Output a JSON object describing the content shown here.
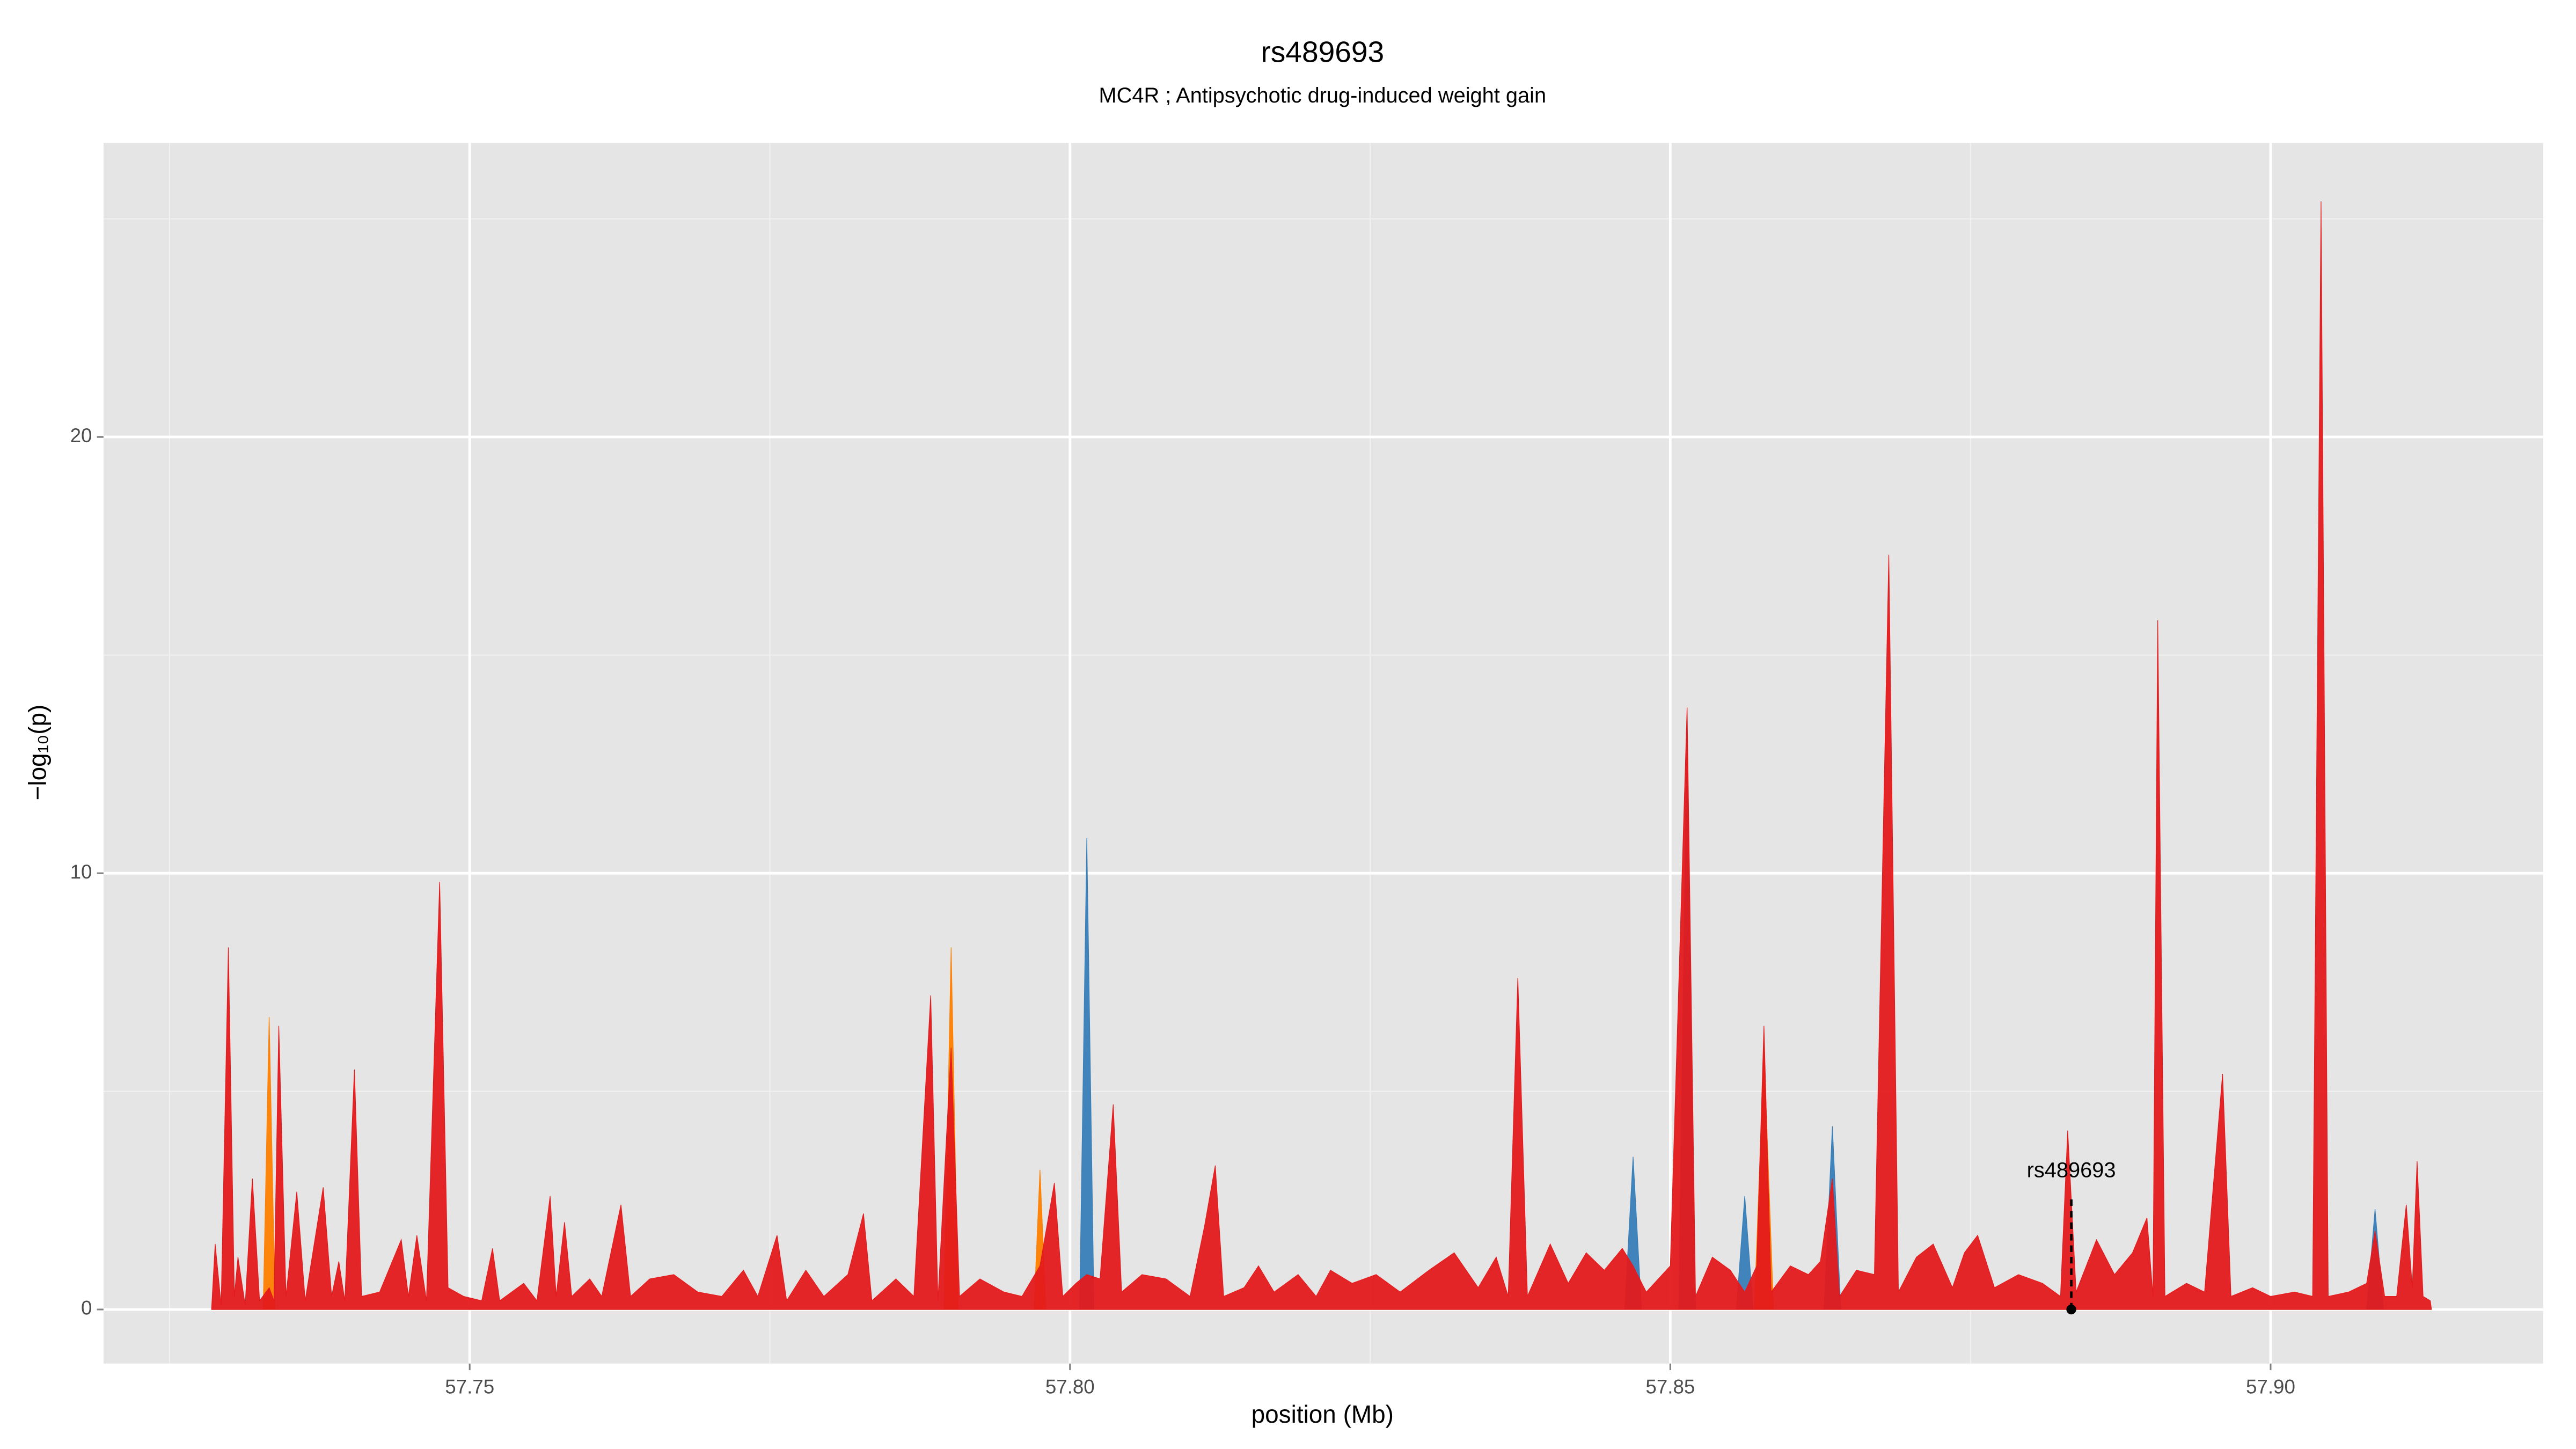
{
  "chart_data": {
    "type": "area",
    "title": "rs489693",
    "subtitle": "MC4R ; Antipsychotic drug-induced weight gain",
    "xlabel": "position (Mb)",
    "ylabel": "−log₁₀(p)",
    "xlim": [
      57.7195,
      57.9227
    ],
    "ylim": [
      -1.24,
      26.74
    ],
    "xticks": [
      57.75,
      {
        "value": 57.8,
        "label": "57.80"
      },
      57.85,
      {
        "value": 57.9,
        "label": "57.90"
      }
    ],
    "yticks": [
      0,
      10,
      20
    ],
    "xminor": [
      57.725,
      57.775,
      57.825,
      57.875
    ],
    "yminor": [
      5,
      15,
      25
    ],
    "grid": true,
    "annotation": {
      "text": "rs489693",
      "x": 57.8834,
      "y": 0
    },
    "series": [
      {
        "color": "#377eb8",
        "x": [
          57.7285,
          57.8008,
          57.8014,
          57.802,
          57.8462,
          57.8469,
          57.8476,
          57.8507,
          57.8514,
          57.8521,
          57.8555,
          57.8562,
          57.8569,
          57.8628,
          57.8635,
          57.8642,
          57.908,
          57.9087,
          57.9094,
          57.9134
        ],
        "values": [
          0,
          0,
          10.8,
          0,
          0,
          3.5,
          0,
          0,
          13.5,
          0,
          0,
          2.6,
          0,
          0,
          4.2,
          0,
          0,
          2.3,
          0,
          0
        ]
      },
      {
        "color": "#ff7f00",
        "x": [
          57.7285,
          57.7328,
          57.7333,
          57.7338,
          57.7895,
          57.7901,
          57.7907,
          57.797,
          57.7975,
          57.798,
          57.857,
          57.8578,
          57.8586,
          57.9134
        ],
        "values": [
          0,
          0,
          6.7,
          0,
          0,
          8.3,
          0,
          0,
          3.2,
          0,
          0,
          6.0,
          0,
          0
        ]
      },
      {
        "color": "#e41a1c",
        "x": [
          57.7285,
          57.7288,
          57.7293,
          57.7299,
          57.7304,
          57.7307,
          57.7313,
          57.7319,
          57.7325,
          57.7333,
          57.7337,
          57.7341,
          57.7347,
          57.7356,
          57.7363,
          57.7378,
          57.7385,
          57.7391,
          57.7396,
          57.7404,
          57.741,
          57.7425,
          57.7443,
          57.7449,
          57.7456,
          57.7464,
          57.7475,
          57.7482,
          57.7495,
          57.751,
          57.7519,
          57.7525,
          57.7545,
          57.7556,
          57.7567,
          57.7572,
          57.7579,
          57.7585,
          57.76,
          57.761,
          57.7626,
          57.7634,
          57.765,
          57.767,
          57.769,
          57.771,
          57.7728,
          57.774,
          57.7756,
          57.7764,
          57.778,
          57.7795,
          57.7815,
          57.7828,
          57.7835,
          57.7855,
          57.787,
          57.7884,
          57.789,
          57.7901,
          57.7908,
          57.7925,
          57.7945,
          57.796,
          57.7975,
          57.7987,
          57.7994,
          57.8005,
          57.8014,
          57.8025,
          57.8036,
          57.8043,
          57.806,
          57.808,
          57.81,
          57.8112,
          57.8121,
          57.8128,
          57.8145,
          57.8157,
          57.817,
          57.819,
          57.8205,
          57.8217,
          57.8235,
          57.8255,
          57.8275,
          57.8299,
          57.832,
          57.834,
          57.8355,
          57.8365,
          57.8373,
          57.8381,
          57.84,
          57.8415,
          57.843,
          57.8445,
          57.846,
          57.8469,
          57.848,
          57.85,
          57.8514,
          57.8521,
          57.8535,
          57.855,
          57.8562,
          57.8572,
          57.8578,
          57.8584,
          57.86,
          57.8615,
          57.8625,
          57.8635,
          57.8641,
          57.8655,
          57.867,
          57.8682,
          57.869,
          57.8705,
          57.8719,
          57.8735,
          57.8745,
          57.8756,
          57.877,
          57.879,
          57.881,
          57.8825,
          57.8831,
          57.8838,
          57.8855,
          57.887,
          57.8885,
          57.8897,
          57.8902,
          57.8906,
          57.8912,
          57.893,
          57.8945,
          57.896,
          57.8967,
          57.8985,
          57.9,
          57.902,
          57.9035,
          57.9042,
          57.9048,
          57.9065,
          57.908,
          57.9087,
          57.9095,
          57.9105,
          57.9113,
          57.9118,
          57.9122,
          57.9127,
          57.9133,
          57.9134
        ],
        "values": [
          0,
          1.5,
          0.1,
          8.3,
          0.3,
          1.2,
          0.1,
          3.0,
          0.2,
          0.5,
          0.2,
          6.5,
          0.3,
          2.7,
          0.2,
          2.8,
          0.3,
          1.1,
          0.2,
          5.5,
          0.3,
          0.4,
          1.6,
          0.3,
          1.7,
          0.2,
          9.8,
          0.5,
          0.3,
          0.2,
          1.4,
          0.2,
          0.6,
          0.2,
          2.6,
          0.3,
          2.0,
          0.3,
          0.7,
          0.3,
          2.4,
          0.3,
          0.7,
          0.8,
          0.4,
          0.3,
          0.9,
          0.3,
          1.7,
          0.2,
          0.9,
          0.3,
          0.8,
          2.2,
          0.2,
          0.7,
          0.3,
          7.2,
          0.2,
          6.0,
          0.3,
          0.7,
          0.4,
          0.3,
          1.0,
          2.9,
          0.3,
          0.6,
          0.8,
          0.7,
          4.7,
          0.4,
          0.8,
          0.7,
          0.3,
          1.9,
          3.3,
          0.3,
          0.5,
          1.0,
          0.4,
          0.8,
          0.3,
          0.9,
          0.6,
          0.8,
          0.4,
          0.9,
          1.3,
          0.5,
          1.2,
          0.3,
          7.6,
          0.3,
          1.5,
          0.6,
          1.3,
          0.9,
          1.4,
          1.0,
          0.4,
          1.0,
          13.8,
          0.3,
          1.2,
          0.9,
          0.4,
          1.0,
          6.5,
          0.4,
          1.0,
          0.8,
          1.1,
          3.0,
          0.3,
          0.9,
          0.8,
          17.3,
          0.4,
          1.2,
          1.5,
          0.5,
          1.3,
          1.7,
          0.5,
          0.8,
          0.6,
          0.3,
          4.1,
          0.4,
          1.6,
          0.8,
          1.3,
          2.1,
          0.3,
          15.8,
          0.3,
          0.6,
          0.4,
          5.4,
          0.3,
          0.5,
          0.3,
          0.4,
          0.3,
          25.4,
          0.3,
          0.4,
          0.6,
          1.8,
          0.3,
          0.3,
          2.4,
          0.5,
          3.4,
          0.3,
          0.2,
          0
        ]
      }
    ]
  }
}
